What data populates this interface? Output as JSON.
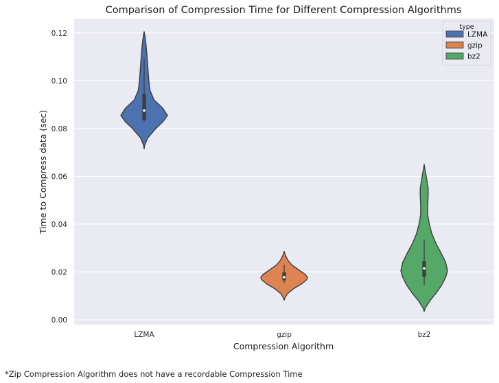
{
  "chart_data": {
    "type": "violin",
    "title": "Comparison of Compression Time for Different Compression Algorithms",
    "xlabel": "Compression Algorithm",
    "ylabel": "Time to Compress data (sec)",
    "categories": [
      "LZMA",
      "gzip",
      "bz2"
    ],
    "ylim": [
      -0.002,
      0.126
    ],
    "yticks": [
      "0.00",
      "0.02",
      "0.04",
      "0.06",
      "0.08",
      "0.10",
      "0.12"
    ],
    "grid": true,
    "legend": {
      "title": "type",
      "placement": "top-right"
    },
    "series": [
      {
        "name": "LZMA",
        "color": "#4c72b0",
        "range": [
          0.0715,
          0.1205
        ],
        "quartiles": [
          0.0835,
          0.0875,
          0.0945
        ],
        "whiskers": [
          0.083,
          0.1095
        ],
        "density": [
          [
            0.0715,
            0.0
          ],
          [
            0.073,
            0.02
          ],
          [
            0.076,
            0.15
          ],
          [
            0.08,
            0.5
          ],
          [
            0.083,
            0.82
          ],
          [
            0.0855,
            1.0
          ],
          [
            0.0885,
            0.8
          ],
          [
            0.092,
            0.42
          ],
          [
            0.096,
            0.25
          ],
          [
            0.1,
            0.2
          ],
          [
            0.104,
            0.17
          ],
          [
            0.108,
            0.14
          ],
          [
            0.112,
            0.11
          ],
          [
            0.116,
            0.07
          ],
          [
            0.119,
            0.03
          ],
          [
            0.1205,
            0.0
          ]
        ]
      },
      {
        "name": "gzip",
        "color": "#dd8452",
        "range": [
          0.0082,
          0.0286
        ],
        "quartiles": [
          0.0165,
          0.0178,
          0.0198
        ],
        "whiskers": [
          0.0155,
          0.023
        ],
        "density": [
          [
            0.0082,
            0.0
          ],
          [
            0.0095,
            0.05
          ],
          [
            0.011,
            0.15
          ],
          [
            0.013,
            0.4
          ],
          [
            0.015,
            0.75
          ],
          [
            0.0168,
            0.97
          ],
          [
            0.0178,
            1.0
          ],
          [
            0.019,
            0.9
          ],
          [
            0.021,
            0.6
          ],
          [
            0.023,
            0.32
          ],
          [
            0.025,
            0.15
          ],
          [
            0.027,
            0.05
          ],
          [
            0.0286,
            0.0
          ]
        ]
      },
      {
        "name": "bz2",
        "color": "#55a868",
        "range": [
          0.0035,
          0.065
        ],
        "quartiles": [
          0.018,
          0.0215,
          0.0245
        ],
        "whiskers": [
          0.0145,
          0.0335
        ],
        "density": [
          [
            0.0035,
            0.0
          ],
          [
            0.005,
            0.05
          ],
          [
            0.008,
            0.25
          ],
          [
            0.011,
            0.5
          ],
          [
            0.0145,
            0.75
          ],
          [
            0.018,
            0.93
          ],
          [
            0.0205,
            1.0
          ],
          [
            0.024,
            0.92
          ],
          [
            0.028,
            0.72
          ],
          [
            0.032,
            0.5
          ],
          [
            0.036,
            0.33
          ],
          [
            0.04,
            0.22
          ],
          [
            0.044,
            0.15
          ],
          [
            0.048,
            0.15
          ],
          [
            0.052,
            0.17
          ],
          [
            0.055,
            0.17
          ],
          [
            0.058,
            0.12
          ],
          [
            0.061,
            0.07
          ],
          [
            0.063,
            0.03
          ],
          [
            0.065,
            0.0
          ]
        ]
      }
    ]
  },
  "footnote": "*Zip Compression Algorithm does not have a recordable Compression Time"
}
